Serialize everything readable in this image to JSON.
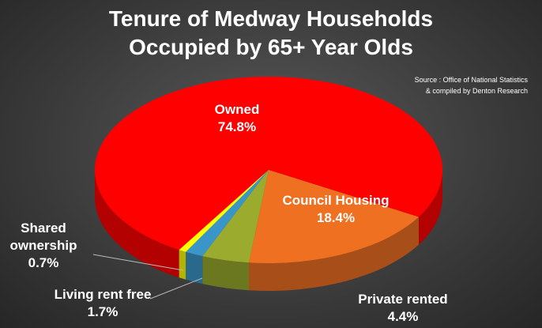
{
  "chart_data": {
    "type": "pie",
    "title": [
      "Tenure of Medway Households",
      "Occupied by 65+ Year Olds"
    ],
    "source": [
      "Source : Office of National Statistics",
      "& compiled by Denton Research"
    ],
    "categories": [
      "Owned",
      "Council Housing",
      "Private rented",
      "Living rent free",
      "Shared ownership"
    ],
    "values": [
      74.8,
      18.4,
      4.4,
      1.7,
      0.7
    ],
    "value_labels": [
      "74.8%",
      "18.4%",
      "4.4%",
      "1.7%",
      "0.7%"
    ],
    "colors": [
      "#ff0000",
      "#f07022",
      "#9aab2e",
      "#3a96c8",
      "#ffff00"
    ]
  }
}
